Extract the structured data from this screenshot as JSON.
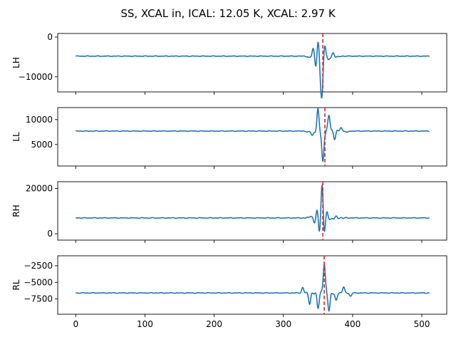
{
  "chart_data": {
    "type": "line",
    "title": "SS, XCAL in, ICAL: 12.05 K, XCAL: 2.97 K",
    "xlim": [
      -26,
      536
    ],
    "xticks": [
      0,
      100,
      200,
      300,
      400,
      500
    ],
    "xtick_labels": [
      "0",
      "100",
      "200",
      "300",
      "400",
      "500"
    ],
    "colors": {
      "line": "#1f77b4",
      "marker": "#d62728"
    },
    "grid": false,
    "panels": [
      {
        "ylabel": "LH",
        "ylim": [
          -13800,
          900
        ],
        "yticks": [
          0,
          -10000
        ],
        "ytick_labels": [
          "0",
          "−10000"
        ],
        "marker_x": 357,
        "baseline": -4800,
        "events": [
          {
            "x": 337,
            "dy": -500
          },
          {
            "x": 343,
            "dy": 1800
          },
          {
            "x": 347,
            "dy": -2600
          },
          {
            "x": 350,
            "dy": 3600
          },
          {
            "x": 354,
            "dy": -4800
          },
          {
            "x": 356,
            "dy": -7900
          },
          {
            "x": 360,
            "dy": 3000
          },
          {
            "x": 365,
            "dy": -1300
          },
          {
            "x": 372,
            "dy": 600
          },
          {
            "x": 379,
            "dy": -300
          }
        ]
      },
      {
        "ylabel": "LL",
        "ylim": [
          700,
          12400
        ],
        "yticks": [
          5000,
          10000
        ],
        "ytick_labels": [
          "5000",
          "10000"
        ],
        "marker_x": 360,
        "baseline": 7700,
        "events": [
          {
            "x": 335,
            "dy": -300
          },
          {
            "x": 342,
            "dy": -1000
          },
          {
            "x": 350,
            "dy": 4200
          },
          {
            "x": 357,
            "dy": -6400
          },
          {
            "x": 366,
            "dy": 3300
          },
          {
            "x": 374,
            "dy": -1500
          },
          {
            "x": 383,
            "dy": 700
          },
          {
            "x": 392,
            "dy": -300
          }
        ]
      },
      {
        "ylabel": "RH",
        "ylim": [
          -2800,
          23000
        ],
        "yticks": [
          0,
          20000
        ],
        "ytick_labels": [
          "0",
          "20000"
        ],
        "marker_x": 357,
        "baseline": 7000,
        "events": [
          {
            "x": 339,
            "dy": 900
          },
          {
            "x": 345,
            "dy": -1800
          },
          {
            "x": 349,
            "dy": 3400
          },
          {
            "x": 352,
            "dy": -6000
          },
          {
            "x": 356,
            "dy": 15000
          },
          {
            "x": 359,
            "dy": -6800
          },
          {
            "x": 363,
            "dy": 2200
          },
          {
            "x": 369,
            "dy": -900
          },
          {
            "x": 376,
            "dy": 400
          }
        ]
      },
      {
        "ylabel": "RL",
        "ylim": [
          -9800,
          -1000
        ],
        "yticks": [
          -2500,
          -5000,
          -7500
        ],
        "ytick_labels": [
          "−2500",
          "−5000",
          "−7500"
        ],
        "marker_x": 359,
        "baseline": -6600,
        "events": [
          {
            "x": 328,
            "dy": 800
          },
          {
            "x": 338,
            "dy": -1600
          },
          {
            "x": 350,
            "dy": -2200
          },
          {
            "x": 359,
            "dy": 4400
          },
          {
            "x": 366,
            "dy": -2600
          },
          {
            "x": 376,
            "dy": -1200
          },
          {
            "x": 387,
            "dy": 900
          },
          {
            "x": 397,
            "dy": -500
          }
        ]
      }
    ]
  }
}
